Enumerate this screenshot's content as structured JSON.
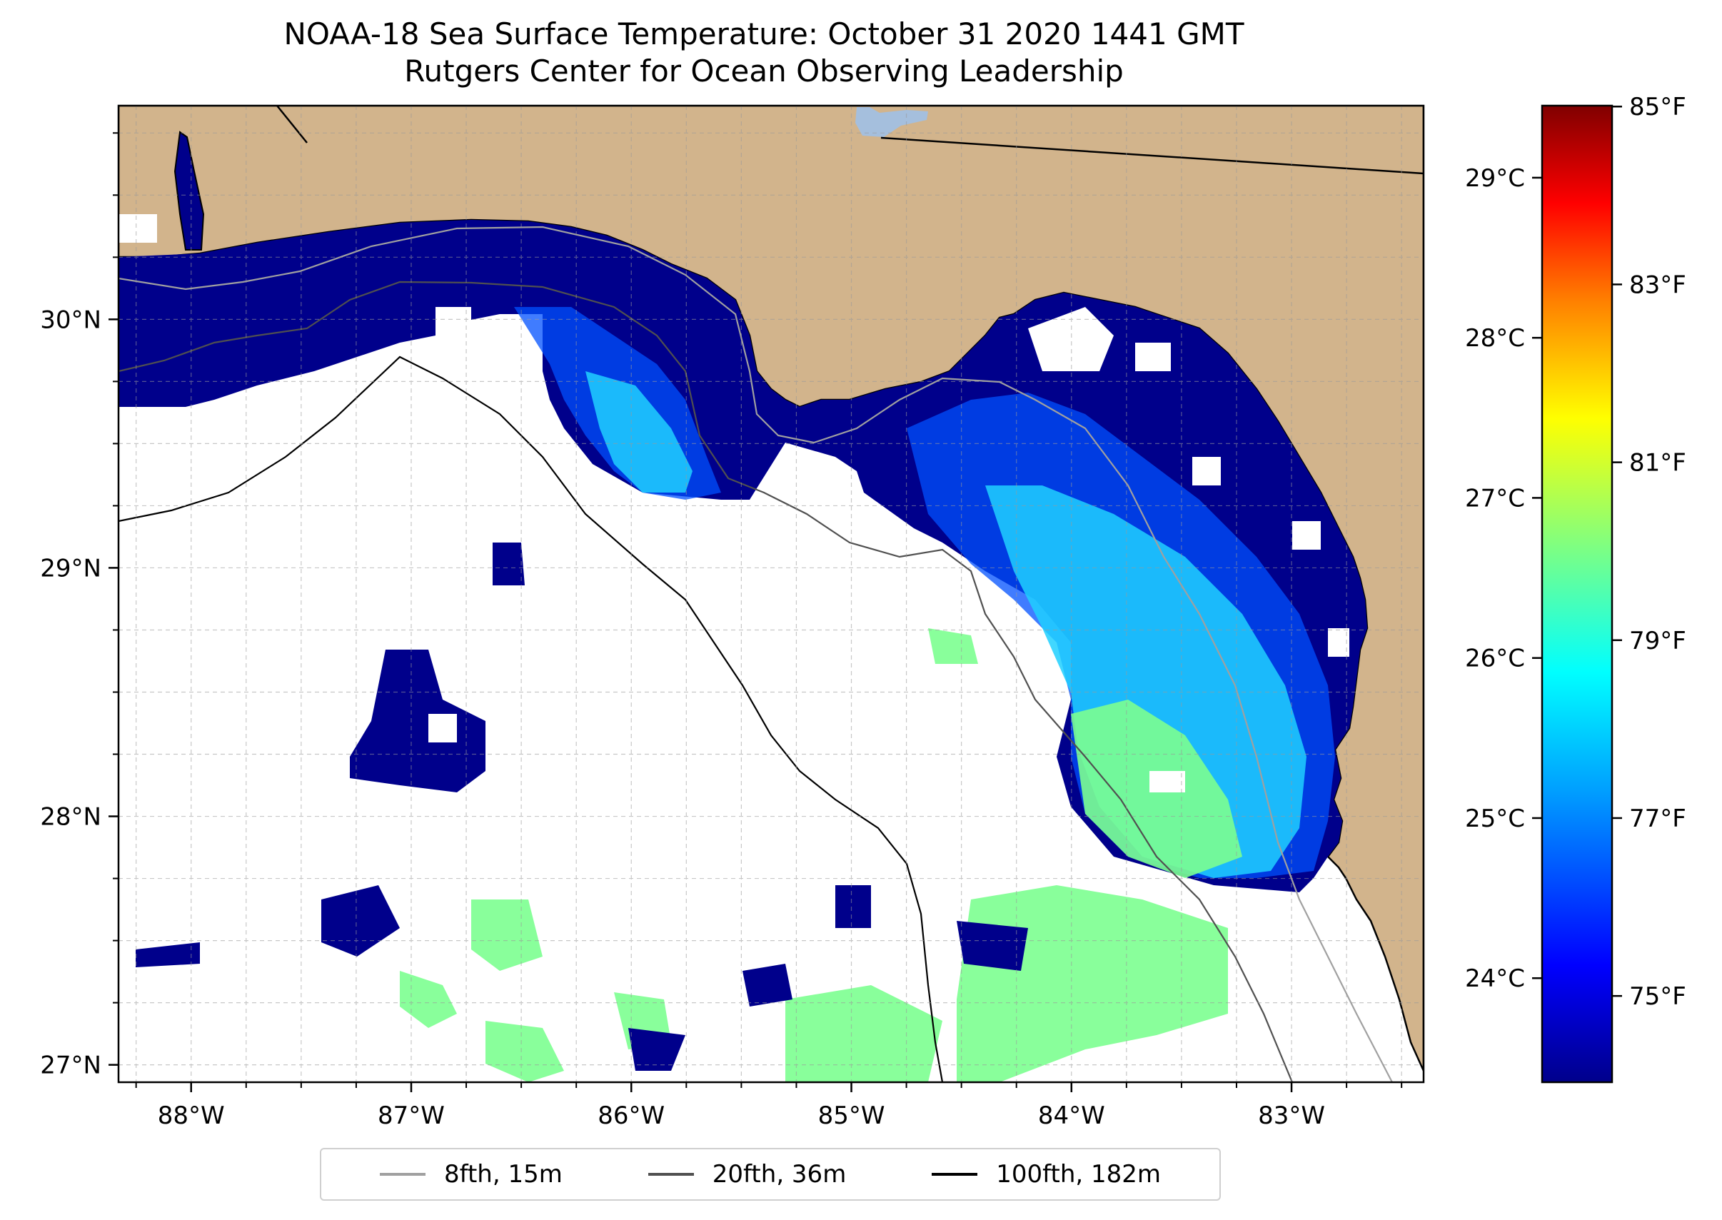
{
  "title": {
    "line1": "NOAA-18 Sea Surface Temperature: October 31 2020 1441 GMT",
    "line2": "Rutgers Center for Ocean Observing Leadership"
  },
  "map": {
    "extent": {
      "lon_min": -88.33,
      "lon_max": -82.4,
      "lat_min": 26.93,
      "lat_max": 30.86
    },
    "land_color": "#d2b48c",
    "coastline_color": "#000000",
    "lake_color": "#a5bfdd",
    "grid": true,
    "lon_ticks": [
      {
        "value": -88,
        "label": "88°W"
      },
      {
        "value": -87,
        "label": "87°W"
      },
      {
        "value": -86,
        "label": "86°W"
      },
      {
        "value": -85,
        "label": "85°W"
      },
      {
        "value": -84,
        "label": "84°W"
      },
      {
        "value": -83,
        "label": "83°W"
      }
    ],
    "lat_ticks": [
      {
        "value": 30,
        "label": "30°N"
      },
      {
        "value": 29,
        "label": "29°N"
      },
      {
        "value": 28,
        "label": "28°N"
      },
      {
        "value": 27,
        "label": "27°N"
      }
    ],
    "isobaths": [
      {
        "label": "8fth, 15m",
        "color": "#a0a0a0"
      },
      {
        "label": "20fth, 36m",
        "color": "#505050"
      },
      {
        "label": "100fth, 182m",
        "color": "#000000"
      }
    ]
  },
  "colorbar": {
    "colormap": "jet",
    "colors": [
      "#00008b",
      "#0000ff",
      "#00a0ff",
      "#00ffff",
      "#80ff80",
      "#ffff00",
      "#ff8000",
      "#ff0000",
      "#800000"
    ],
    "celsius_ticks": [
      {
        "value": 24,
        "label": "24°C"
      },
      {
        "value": 25,
        "label": "25°C"
      },
      {
        "value": 26,
        "label": "26°C"
      },
      {
        "value": 27,
        "label": "27°C"
      },
      {
        "value": 28,
        "label": "28°C"
      },
      {
        "value": 29,
        "label": "29°C"
      }
    ],
    "fahrenheit_ticks": [
      {
        "value": 75,
        "label": "75°F"
      },
      {
        "value": 77,
        "label": "77°F"
      },
      {
        "value": 79,
        "label": "79°F"
      },
      {
        "value": 81,
        "label": "81°F"
      },
      {
        "value": 83,
        "label": "83°F"
      },
      {
        "value": 85,
        "label": "85°F"
      }
    ]
  }
}
